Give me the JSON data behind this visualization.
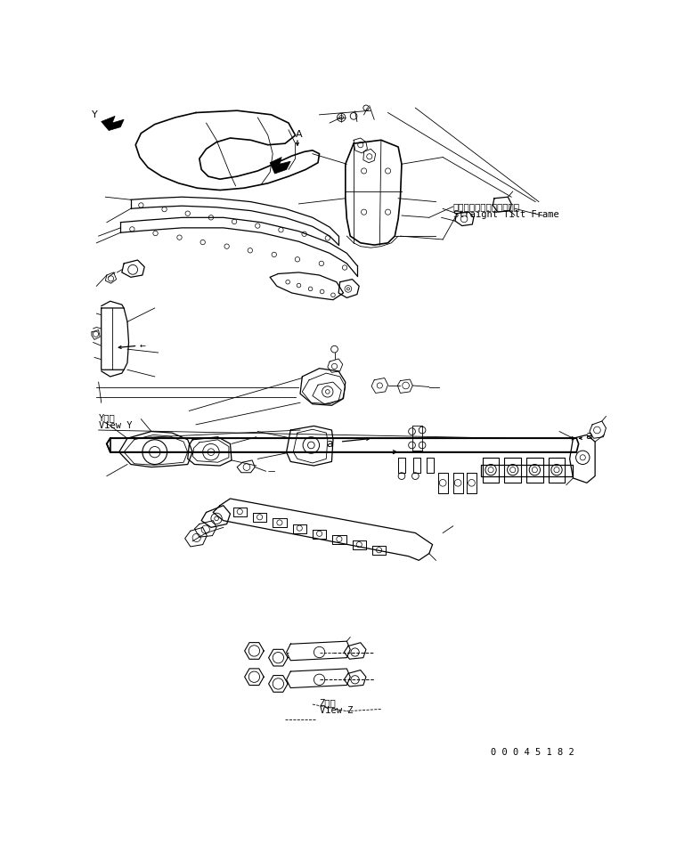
{
  "background_color": "#ffffff",
  "line_color": "#000000",
  "text_color": "#000000",
  "part_number": "0 0 0 4 5 1 8 2",
  "label_straight_tilt_jp": "ストレートチルトフレーム",
  "label_straight_tilt_en": "Straight Tilt Frame",
  "label_view_y_jp": "Y　視",
  "label_view_y_en": "View Y",
  "label_view_z_jp": "Z　視",
  "label_view_z_en": "View Z",
  "label_a": "a",
  "label_A": "A",
  "figsize": [
    7.59,
    9.58
  ],
  "dpi": 100
}
